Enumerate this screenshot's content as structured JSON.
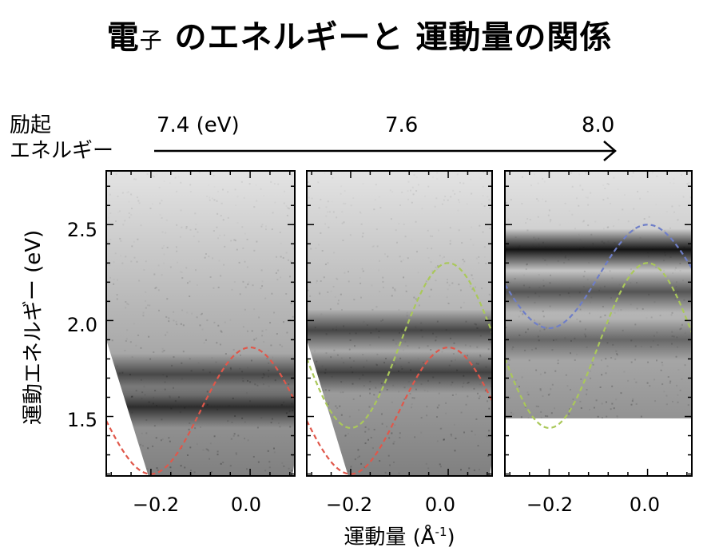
{
  "title": {
    "part1": "電",
    "part2": "子",
    "part3": " のエネルギーと 運動量の関係"
  },
  "excitation": {
    "label_line1": "励起",
    "label_line2": "エネルギー",
    "values": [
      "7.4 (eV)",
      "7.6",
      "8.0"
    ]
  },
  "chart_data": {
    "type": "heatmap",
    "description_units": {
      "x": "Å^-1",
      "y": "eV"
    },
    "ylabel": "運動エネルギー (eV)",
    "xlabel": "運動量 (Å",
    "xlabel_sup": "-1",
    "xlabel_end": ")",
    "xlim": [
      -0.29,
      0.09
    ],
    "ylim": [
      1.19,
      2.78
    ],
    "y_ticks": [
      1.5,
      2.0,
      2.5
    ],
    "y_tick_labels": [
      "1.5",
      "2.0",
      "2.5"
    ],
    "x_ticks": [
      -0.2,
      0.0
    ],
    "x_tick_labels": [
      "−0.2",
      "0.0"
    ],
    "colors": {
      "red": "#e0574a",
      "green": "#aac85a",
      "blue": "#6e7ec8"
    },
    "panels": [
      {
        "excitation": "7.4 (eV)",
        "bands": [
          {
            "name": "band-1",
            "color": "red",
            "center_energy": 1.53,
            "amplitude": 0.33
          }
        ],
        "intensity_bands": [
          {
            "energy": 1.72,
            "strength": 0.55
          },
          {
            "energy": 1.55,
            "strength": 0.7
          }
        ],
        "data_cutoff": "low-energy edge"
      },
      {
        "excitation": "7.6",
        "bands": [
          {
            "name": "band-1",
            "color": "red",
            "center_energy": 1.53,
            "amplitude": 0.33
          },
          {
            "name": "band-2",
            "color": "green",
            "center_energy": 1.87,
            "amplitude": 0.43
          }
        ],
        "intensity_bands": [
          {
            "energy": 1.95,
            "strength": 0.6
          },
          {
            "energy": 1.73,
            "strength": 0.6
          }
        ],
        "data_cutoff": "low-energy edge"
      },
      {
        "excitation": "8.0",
        "bands": [
          {
            "name": "band-2",
            "color": "green",
            "center_energy": 1.87,
            "amplitude": 0.43
          },
          {
            "name": "band-3",
            "color": "blue",
            "center_energy": 2.23,
            "amplitude": 0.27
          }
        ],
        "intensity_bands": [
          {
            "energy": 2.37,
            "strength": 0.9
          },
          {
            "energy": 2.15,
            "strength": 0.55
          },
          {
            "energy": 1.9,
            "strength": 0.4
          }
        ],
        "data_cutoff_energy": 1.49
      }
    ]
  }
}
